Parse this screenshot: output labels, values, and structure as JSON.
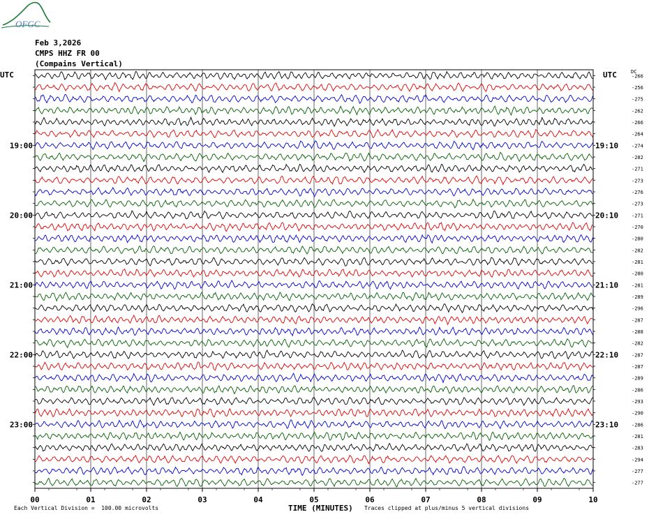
{
  "header": {
    "logo_text": "OFGC",
    "date": "Feb 3,2026",
    "station": "CMPS HHZ FR 00",
    "location": "(Compains Vertical)"
  },
  "axis_left_title": "UTC",
  "axis_right_title": "UTC",
  "dc_label": "DC",
  "footer": {
    "scale_note": "Each Vertical Division =  100.00 microvolts",
    "clip_note": "Traces clipped at plus/minus 5 vertical divisions"
  },
  "colors": {
    "trace_cycle": [
      "#000000",
      "#e00000",
      "#0000d0",
      "#006000"
    ],
    "grid": "#000000",
    "logo": "#1a7a3a"
  },
  "chart_data": {
    "type": "line",
    "title": "",
    "xlabel": "TIME (MINUTES)",
    "ylabel": "",
    "xlim": [
      0,
      10
    ],
    "x_ticks": [
      "00",
      "01",
      "02",
      "03",
      "04",
      "05",
      "06",
      "07",
      "08",
      "09",
      "10"
    ],
    "left_hour_labels": [
      {
        "row": 6,
        "label": "19:00"
      },
      {
        "row": 12,
        "label": "20:00"
      },
      {
        "row": 18,
        "label": "21:00"
      },
      {
        "row": 24,
        "label": "22:00"
      },
      {
        "row": 30,
        "label": "23:00"
      }
    ],
    "right_hour_labels": [
      {
        "row": 6,
        "label": "19:10"
      },
      {
        "row": 12,
        "label": "20:10"
      },
      {
        "row": 18,
        "label": "21:10"
      },
      {
        "row": 24,
        "label": "22:10"
      },
      {
        "row": 30,
        "label": "23:10"
      }
    ],
    "trace_count": 36,
    "dc_offsets": [
      "-266",
      "-256",
      "-275",
      "-262",
      "-266",
      "-264",
      "-274",
      "-282",
      "-271",
      "-273",
      "-276",
      "-273",
      "-271",
      "-270",
      "-280",
      "-282",
      "-281",
      "-280",
      "-281",
      "-289",
      "-296",
      "-287",
      "-288",
      "-282",
      "-287",
      "-287",
      "-289",
      "-286",
      "-293",
      "-290",
      "-286",
      "-281",
      "-283",
      "-294",
      "-277",
      "-277"
    ]
  }
}
